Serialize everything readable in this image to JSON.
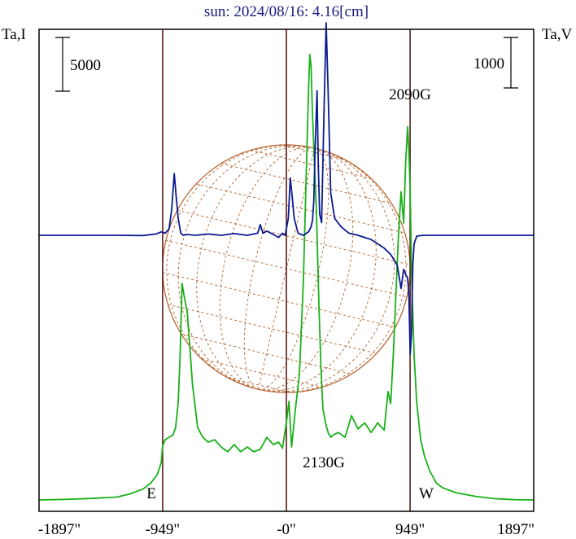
{
  "chart_data": {
    "type": "line",
    "title": "sun: 2024/08/16: 4.16[cm]",
    "left_axis_label": "Ta,I",
    "right_axis_label": "Ta,V",
    "left_scale_bar": "5000",
    "right_scale_bar": "1000",
    "x_ticks": [
      {
        "value": -1897,
        "label": "-1897\""
      },
      {
        "value": -949,
        "label": "-949\""
      },
      {
        "value": 0,
        "label": "-0\""
      },
      {
        "value": 949,
        "label": "949\""
      },
      {
        "value": 1897,
        "label": "1897\""
      }
    ],
    "xlim": [
      -1897,
      1897
    ],
    "vertical_lines": [
      -949,
      0,
      949
    ],
    "solar_radius": 949,
    "limb_labels": {
      "east": "E",
      "west": "W"
    },
    "annotations": [
      {
        "label": "2090G",
        "x": 949
      },
      {
        "label": "2130G",
        "x": 290
      }
    ],
    "colors": {
      "frame": "#000000",
      "vertical_lines": "#5a1a1a",
      "title": "#1a1a80",
      "sun_disk": "#b5602a",
      "stokes_i": "#19b019",
      "stokes_v": "#0a1a90"
    },
    "series": [
      {
        "color": "#19b019",
        "x": [
          -1897,
          -1700,
          -1500,
          -1300,
          -1200,
          -1100,
          -1040,
          -990,
          -960,
          -949,
          -930,
          -900,
          -870,
          -850,
          -830,
          -815,
          -800,
          -785,
          -760,
          -720,
          -680,
          -640,
          -600,
          -550,
          -500,
          -450,
          -400,
          -350,
          -300,
          -250,
          -200,
          -150,
          -100,
          -60,
          -30,
          0,
          20,
          40,
          70,
          100,
          130,
          150,
          170,
          180,
          190,
          200,
          215,
          230,
          240,
          250,
          265,
          280,
          300,
          320,
          340,
          360,
          400,
          450,
          500,
          550,
          600,
          650,
          700,
          750,
          780,
          800,
          820,
          840,
          860,
          880,
          900,
          915,
          930,
          940,
          949,
          960,
          980,
          1000,
          1030,
          1060,
          1100,
          1150,
          1200,
          1300,
          1450,
          1600,
          1750,
          1897
        ],
        "values": [
          0,
          20,
          60,
          120,
          250,
          450,
          700,
          1050,
          1550,
          2250,
          2500,
          2600,
          2700,
          3000,
          4000,
          6000,
          9000,
          8500,
          7800,
          4800,
          3000,
          2600,
          2400,
          2500,
          2200,
          2000,
          2300,
          2000,
          2200,
          2000,
          2100,
          2600,
          2300,
          2400,
          2150,
          3200,
          4100,
          2200,
          3800,
          5200,
          9000,
          13000,
          17000,
          18500,
          18000,
          16000,
          14000,
          12000,
          10000,
          8000,
          5500,
          3800,
          3200,
          2800,
          2600,
          2700,
          2800,
          2600,
          3500,
          2950,
          3200,
          2800,
          3200,
          2900,
          4500,
          4000,
          6000,
          8500,
          11000,
          12800,
          11500,
          14000,
          15500,
          14500,
          13000,
          9500,
          6000,
          4000,
          2500,
          1800,
          1200,
          700,
          500,
          300,
          150,
          50,
          10,
          0
        ]
      },
      {
        "color": "#0a1a90",
        "x": [
          -1897,
          -1600,
          -1300,
          -1100,
          -1000,
          -960,
          -930,
          -900,
          -880,
          -860,
          -845,
          -830,
          -810,
          -790,
          -760,
          -700,
          -600,
          -500,
          -400,
          -300,
          -220,
          -200,
          -180,
          -150,
          -100,
          -60,
          -30,
          -10,
          0,
          15,
          30,
          45,
          60,
          90,
          130,
          170,
          190,
          200,
          210,
          220,
          235,
          245,
          255,
          270,
          290,
          305,
          320,
          340,
          370,
          420,
          480,
          550,
          600,
          650,
          700,
          750,
          800,
          850,
          880,
          900,
          920,
          930,
          940,
          950,
          960,
          970,
          980,
          1000,
          1050,
          1200,
          1400,
          1600,
          1897
        ],
        "values": [
          0,
          0,
          0,
          5,
          -30,
          -80,
          -50,
          -150,
          -600,
          -1450,
          -900,
          -400,
          -50,
          0,
          -20,
          0,
          -30,
          0,
          -40,
          0,
          -50,
          -250,
          -50,
          -100,
          -20,
          50,
          -50,
          0,
          -150,
          -400,
          -1350,
          -900,
          -400,
          -50,
          0,
          -80,
          -200,
          -350,
          -800,
          -2000,
          -3400,
          -1600,
          -500,
          -300,
          -3100,
          -5000,
          -3400,
          -1000,
          -400,
          -200,
          -50,
          0,
          50,
          100,
          200,
          300,
          450,
          700,
          1250,
          800,
          950,
          1000,
          1400,
          2800,
          2300,
          700,
          200,
          20,
          0,
          0,
          0,
          0,
          0
        ]
      }
    ]
  }
}
